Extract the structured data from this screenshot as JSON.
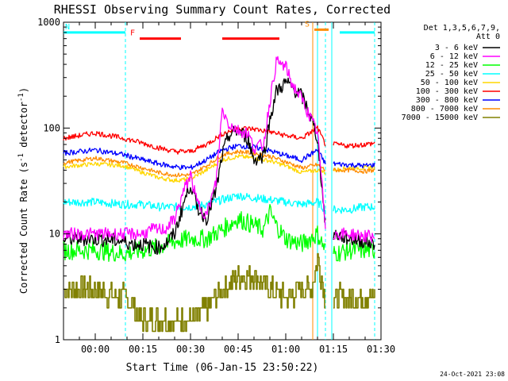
{
  "chart_data": {
    "type": "line",
    "title": "RHESSI Observing Summary Count Rates, Corrected",
    "xlabel": "Start Time (06-Jan-15 23:50:22)",
    "ylabel": "Corrected Count Rate (s⁻¹ detector⁻¹)",
    "ylabel_main": "Corrected Count Rate (s",
    "ylabel_mid": " detector",
    "ylabel_end": ")",
    "ylabel_sup": "-1",
    "yscale": "log",
    "ylim": [
      1,
      1000
    ],
    "xlim_minutes": [
      -10,
      90
    ],
    "x_unit": "minutes after 00:00",
    "x_ticks": [
      {
        "m": 0,
        "label": "00:00"
      },
      {
        "m": 15,
        "label": "00:15"
      },
      {
        "m": 30,
        "label": "00:30"
      },
      {
        "m": 45,
        "label": "00:45"
      },
      {
        "m": 60,
        "label": "01:00"
      },
      {
        "m": 75,
        "label": "01:15"
      },
      {
        "m": 90,
        "label": "01:30"
      }
    ],
    "y_ticks": [
      {
        "v": 1,
        "label": "1"
      },
      {
        "v": 10,
        "label": "10"
      },
      {
        "v": 100,
        "label": "100"
      },
      {
        "v": 1000,
        "label": "1000"
      }
    ],
    "legend_header": [
      "Det 1,3,5,6,7,9,",
      "Att 0"
    ],
    "legend_position": "right",
    "flags": [
      {
        "label": "N",
        "color": "#00ffff",
        "level": 800,
        "segments": [
          [
            -10,
            9.5
          ],
          [
            77,
            88
          ]
        ]
      },
      {
        "label": "F",
        "color": "#ff0000",
        "level": 700,
        "segments": [
          [
            14,
            27
          ],
          [
            40,
            58
          ]
        ]
      },
      {
        "label": "S",
        "color": "#ff8c00",
        "level": 850,
        "segments": [
          [
            69,
            73.5
          ]
        ]
      }
    ],
    "vertical_markers": [
      {
        "m": 9.5,
        "color": "#00ffff",
        "dashed": true
      },
      {
        "m": 68.5,
        "color": "#ff8c00",
        "dashed": false
      },
      {
        "m": 70,
        "color": "#00ffff",
        "dashed": false
      },
      {
        "m": 72.5,
        "color": "#00ffff",
        "dashed": true
      },
      {
        "m": 74.5,
        "color": "#00ffff",
        "dashed": false
      },
      {
        "m": 88,
        "color": "#00ffff",
        "dashed": true
      }
    ],
    "gaps": [
      [
        72.5,
        75
      ]
    ],
    "series": [
      {
        "name": "3 - 6 keV",
        "color": "#000000",
        "noise": 0.07,
        "x": [
          -10,
          0,
          9,
          12,
          15,
          18,
          20,
          22,
          25,
          28,
          30,
          32,
          35,
          38,
          40,
          42,
          45,
          48,
          50,
          53,
          55,
          57,
          60,
          62,
          65,
          67,
          70,
          72.5,
          75,
          80,
          85,
          88
        ],
        "y": [
          9,
          9,
          8.5,
          8,
          8,
          7.5,
          7.5,
          8,
          10,
          20,
          30,
          18,
          14,
          25,
          55,
          85,
          95,
          80,
          50,
          55,
          120,
          220,
          270,
          240,
          200,
          150,
          80,
          12,
          10,
          9,
          8.5,
          8
        ]
      },
      {
        "name": "6 - 12 keV",
        "color": "#ff00ff",
        "noise": 0.06,
        "x": [
          -10,
          0,
          9,
          12,
          15,
          18,
          20,
          22,
          25,
          28,
          30,
          32,
          35,
          38,
          40,
          42,
          45,
          48,
          50,
          53,
          55,
          57,
          60,
          62,
          65,
          67,
          70,
          72.5,
          75,
          80,
          85,
          88
        ],
        "y": [
          10,
          10,
          10,
          10,
          10,
          11,
          11,
          11,
          14,
          26,
          36,
          20,
          15,
          30,
          150,
          110,
          95,
          90,
          65,
          70,
          180,
          420,
          380,
          260,
          190,
          140,
          90,
          12,
          10,
          10,
          9.5,
          9.5
        ]
      },
      {
        "name": "12 - 25 keV",
        "color": "#00ff00",
        "noise": 0.09,
        "x": [
          -10,
          0,
          9,
          15,
          20,
          25,
          30,
          35,
          40,
          45,
          50,
          53,
          55,
          57,
          60,
          65,
          70,
          72.5,
          75,
          80,
          85,
          88
        ],
        "y": [
          7,
          7,
          6.5,
          7,
          7.5,
          8.5,
          9,
          9,
          11,
          14,
          12,
          11,
          16,
          12,
          9,
          8,
          10,
          7,
          6.5,
          7,
          7,
          7
        ]
      },
      {
        "name": "25 - 50 keV",
        "color": "#00ffff",
        "noise": 0.04,
        "x": [
          -10,
          0,
          9,
          15,
          20,
          25,
          30,
          35,
          40,
          45,
          50,
          55,
          60,
          65,
          70,
          72.5,
          75,
          80,
          85,
          88
        ],
        "y": [
          20,
          20,
          19,
          19,
          18,
          18,
          18,
          19,
          21,
          23,
          22,
          21,
          20,
          19,
          20,
          17,
          17,
          17,
          18,
          18
        ]
      },
      {
        "name": "50 - 100 keV",
        "color": "#ffd700",
        "noise": 0.02,
        "x": [
          -10,
          0,
          9,
          15,
          20,
          25,
          30,
          35,
          40,
          45,
          50,
          55,
          60,
          65,
          70,
          72.5,
          75,
          80,
          85,
          88
        ],
        "y": [
          43,
          46,
          44,
          38,
          34,
          32,
          33,
          40,
          50,
          54,
          52,
          49,
          44,
          38,
          40,
          38,
          40,
          42,
          42,
          43
        ]
      },
      {
        "name": "100 - 300 keV",
        "color": "#ff0000",
        "noise": 0.025,
        "x": [
          -10,
          0,
          9,
          15,
          20,
          25,
          30,
          35,
          40,
          45,
          50,
          55,
          60,
          65,
          70,
          72.5,
          75,
          80,
          85,
          88
        ],
        "y": [
          80,
          90,
          80,
          72,
          65,
          60,
          60,
          70,
          88,
          100,
          98,
          92,
          85,
          80,
          100,
          70,
          70,
          68,
          70,
          72
        ]
      },
      {
        "name": "300 - 800 keV",
        "color": "#0000ff",
        "noise": 0.025,
        "x": [
          -10,
          0,
          9,
          15,
          20,
          25,
          30,
          35,
          40,
          45,
          50,
          55,
          60,
          65,
          70,
          72.5,
          75,
          80,
          85,
          88
        ],
        "y": [
          58,
          62,
          56,
          50,
          46,
          43,
          42,
          50,
          62,
          68,
          66,
          61,
          55,
          50,
          62,
          46,
          46,
          45,
          44,
          45
        ]
      },
      {
        "name": "800 - 7000 keV",
        "color": "#ff8c00",
        "noise": 0.02,
        "x": [
          -10,
          0,
          9,
          15,
          20,
          25,
          30,
          35,
          40,
          45,
          50,
          55,
          60,
          65,
          70,
          72.5,
          75,
          80,
          85,
          88
        ],
        "y": [
          47,
          52,
          47,
          42,
          38,
          36,
          36,
          44,
          56,
          60,
          58,
          54,
          48,
          42,
          45,
          40,
          40,
          40,
          39,
          40
        ]
      },
      {
        "name": "7000 - 15000 keV",
        "color": "#808000",
        "noise": 0.12,
        "stepped": true,
        "x": [
          -10,
          0,
          9,
          12,
          15,
          20,
          25,
          30,
          35,
          40,
          45,
          50,
          55,
          60,
          65,
          68,
          70,
          72.5,
          75,
          80,
          85,
          88
        ],
        "y": [
          3,
          3,
          2.5,
          2,
          1.5,
          1.5,
          1.5,
          1.5,
          2,
          3,
          4,
          4,
          3,
          2.5,
          3,
          3,
          6,
          2.5,
          2.5,
          2.5,
          2.5,
          2.5
        ]
      }
    ]
  },
  "footer_date": "24-Oct-2021 23:08"
}
